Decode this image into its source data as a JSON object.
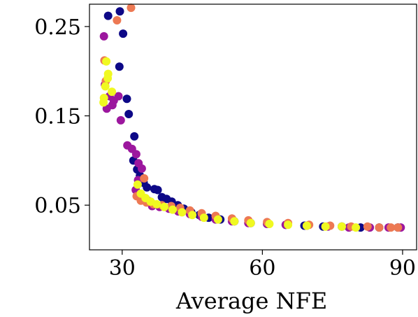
{
  "chart_data": {
    "type": "scatter",
    "title": "",
    "xlabel": "Average NFE",
    "ylabel": "",
    "xlim": [
      23,
      93
    ],
    "ylim": [
      0.0,
      0.275
    ],
    "x_ticks": [
      {
        "value": 30,
        "label": "30"
      },
      {
        "value": 60,
        "label": "60"
      },
      {
        "value": 90,
        "label": "90"
      }
    ],
    "y_ticks": [
      {
        "value": 0.05,
        "label": "0.05"
      },
      {
        "value": 0.15,
        "label": "0.15"
      },
      {
        "value": 0.25,
        "label": "0.25"
      }
    ],
    "grid": false,
    "legend": "none",
    "series": [
      {
        "color": "#0d0887",
        "points": [
          [
            27.0,
            0.262
          ],
          [
            29.5,
            0.267
          ],
          [
            30.2,
            0.242
          ],
          [
            29.4,
            0.205
          ],
          [
            31.0,
            0.169
          ],
          [
            31.4,
            0.152
          ],
          [
            32.6,
            0.127
          ],
          [
            32.4,
            0.1
          ],
          [
            33.2,
            0.09
          ],
          [
            33.8,
            0.083
          ],
          [
            34.6,
            0.075
          ],
          [
            35.3,
            0.07
          ],
          [
            36.9,
            0.068
          ],
          [
            37.6,
            0.067
          ],
          [
            38.5,
            0.059
          ],
          [
            39.5,
            0.057
          ],
          [
            40.6,
            0.054
          ],
          [
            41.9,
            0.05
          ],
          [
            43.2,
            0.046
          ],
          [
            44.8,
            0.042
          ],
          [
            46.5,
            0.039
          ],
          [
            48.5,
            0.036
          ],
          [
            51.0,
            0.034
          ],
          [
            54.0,
            0.032
          ],
          [
            57.5,
            0.03
          ],
          [
            61.0,
            0.029
          ],
          [
            65.0,
            0.028
          ],
          [
            69.0,
            0.027
          ],
          [
            73.0,
            0.026
          ],
          [
            77.0,
            0.026
          ],
          [
            81.0,
            0.025
          ],
          [
            85.0,
            0.025
          ],
          [
            89.0,
            0.025
          ]
        ]
      },
      {
        "color": "#9c179e",
        "points": [
          [
            26.1,
            0.239
          ],
          [
            26.3,
            0.185
          ],
          [
            27.3,
            0.172
          ],
          [
            28.2,
            0.167
          ],
          [
            29.2,
            0.172
          ],
          [
            29.7,
            0.145
          ],
          [
            26.7,
            0.158
          ],
          [
            27.9,
            0.162
          ],
          [
            31.1,
            0.117
          ],
          [
            32.1,
            0.113
          ],
          [
            33.0,
            0.107
          ],
          [
            33.5,
            0.097
          ],
          [
            34.2,
            0.091
          ],
          [
            33.4,
            0.078
          ],
          [
            32.9,
            0.067
          ],
          [
            33.9,
            0.06
          ],
          [
            35.5,
            0.055
          ],
          [
            36.4,
            0.049
          ],
          [
            38.0,
            0.048
          ],
          [
            40.0,
            0.046
          ],
          [
            42.0,
            0.043
          ],
          [
            44.5,
            0.04
          ],
          [
            47.0,
            0.037
          ],
          [
            50.0,
            0.034
          ],
          [
            53.5,
            0.032
          ],
          [
            57.0,
            0.03
          ],
          [
            61.0,
            0.029
          ],
          [
            65.0,
            0.028
          ],
          [
            69.5,
            0.027
          ],
          [
            74.0,
            0.026
          ],
          [
            78.5,
            0.025
          ],
          [
            83.0,
            0.025
          ],
          [
            87.0,
            0.025
          ],
          [
            89.6,
            0.025
          ]
        ]
      },
      {
        "color": "#ed7953",
        "points": [
          [
            28.9,
            0.257
          ],
          [
            31.9,
            0.271
          ],
          [
            26.2,
            0.212
          ],
          [
            26.5,
            0.189
          ],
          [
            34.7,
            0.08
          ],
          [
            33.1,
            0.06
          ],
          [
            34.0,
            0.055
          ],
          [
            35.2,
            0.053
          ],
          [
            36.7,
            0.051
          ],
          [
            38.5,
            0.05
          ],
          [
            40.5,
            0.049
          ],
          [
            42.4,
            0.047
          ],
          [
            44.5,
            0.044
          ],
          [
            47.0,
            0.041
          ],
          [
            50.0,
            0.038
          ],
          [
            53.5,
            0.035
          ],
          [
            57.0,
            0.033
          ],
          [
            61.0,
            0.031
          ],
          [
            65.5,
            0.03
          ],
          [
            70.0,
            0.028
          ],
          [
            74.5,
            0.027
          ],
          [
            79.0,
            0.026
          ],
          [
            82.5,
            0.026
          ],
          [
            85.0,
            0.025
          ],
          [
            87.5,
            0.025
          ],
          [
            89.0,
            0.025
          ]
        ]
      },
      {
        "color": "#f0f921",
        "points": [
          [
            26.6,
            0.211
          ],
          [
            27.0,
            0.197
          ],
          [
            26.9,
            0.192
          ],
          [
            26.4,
            0.183
          ],
          [
            27.8,
            0.177
          ],
          [
            26.1,
            0.17
          ],
          [
            26.0,
            0.165
          ],
          [
            33.3,
            0.073
          ],
          [
            34.0,
            0.063
          ],
          [
            35.0,
            0.058
          ],
          [
            36.1,
            0.054
          ],
          [
            37.4,
            0.051
          ],
          [
            39.0,
            0.048
          ],
          [
            40.8,
            0.045
          ],
          [
            42.8,
            0.042
          ],
          [
            45.0,
            0.039
          ],
          [
            47.5,
            0.036
          ],
          [
            50.5,
            0.034
          ],
          [
            54.0,
            0.032
          ],
          [
            57.5,
            0.03
          ],
          [
            61.5,
            0.029
          ],
          [
            65.5,
            0.028
          ],
          [
            69.5,
            0.027
          ],
          [
            73.5,
            0.026
          ],
          [
            77.0,
            0.026
          ],
          [
            80.0,
            0.025
          ]
        ]
      }
    ]
  }
}
